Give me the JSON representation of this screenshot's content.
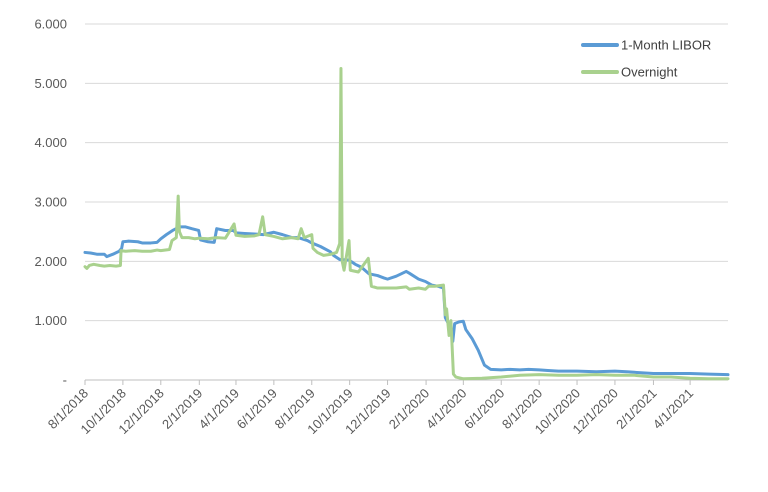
{
  "chart_data": {
    "type": "line",
    "title": "",
    "xlabel": "",
    "ylabel": "",
    "ylim": [
      0,
      6
    ],
    "xlim": [
      "2018-08-01",
      "2021-06-01"
    ],
    "y_ticks": [
      "-",
      "1.000",
      "2.000",
      "3.000",
      "4.000",
      "5.000",
      "6.000"
    ],
    "x_ticks": [
      {
        "label": "8/1/2018",
        "date": "2018-08-01"
      },
      {
        "label": "10/1/2018",
        "date": "2018-10-01"
      },
      {
        "label": "12/1/2018",
        "date": "2018-12-01"
      },
      {
        "label": "2/1/2019",
        "date": "2019-02-01"
      },
      {
        "label": "4/1/2019",
        "date": "2019-04-01"
      },
      {
        "label": "6/1/2019",
        "date": "2019-06-01"
      },
      {
        "label": "8/1/2019",
        "date": "2019-08-01"
      },
      {
        "label": "10/1/2019",
        "date": "2019-10-01"
      },
      {
        "label": "12/1/2019",
        "date": "2019-12-01"
      },
      {
        "label": "2/1/2020",
        "date": "2020-02-01"
      },
      {
        "label": "4/1/2020",
        "date": "2020-04-01"
      },
      {
        "label": "6/1/2020",
        "date": "2020-06-01"
      },
      {
        "label": "8/1/2020",
        "date": "2020-08-01"
      },
      {
        "label": "10/1/2020",
        "date": "2020-10-01"
      },
      {
        "label": "12/1/2020",
        "date": "2020-12-01"
      },
      {
        "label": "2/1/2021",
        "date": "2021-02-01"
      },
      {
        "label": "4/1/2021",
        "date": "2021-04-01"
      }
    ],
    "grid": true,
    "legend_position": "top-right",
    "series": [
      {
        "name": "1-Month LIBOR",
        "color": "#5B9BD5",
        "points": [
          [
            "2018-08-01",
            2.15
          ],
          [
            "2018-08-10",
            2.14
          ],
          [
            "2018-08-20",
            2.12
          ],
          [
            "2018-09-01",
            2.12
          ],
          [
            "2018-09-05",
            2.08
          ],
          [
            "2018-09-15",
            2.12
          ],
          [
            "2018-09-25",
            2.17
          ],
          [
            "2018-09-29",
            2.22
          ],
          [
            "2018-10-01",
            2.33
          ],
          [
            "2018-10-10",
            2.34
          ],
          [
            "2018-10-25",
            2.33
          ],
          [
            "2018-11-01",
            2.31
          ],
          [
            "2018-11-15",
            2.31
          ],
          [
            "2018-11-25",
            2.32
          ],
          [
            "2018-12-01",
            2.38
          ],
          [
            "2018-12-10",
            2.45
          ],
          [
            "2018-12-20",
            2.52
          ],
          [
            "2018-12-31",
            2.58
          ],
          [
            "2019-01-10",
            2.58
          ],
          [
            "2019-01-20",
            2.55
          ],
          [
            "2019-01-31",
            2.52
          ],
          [
            "2019-02-03",
            2.36
          ],
          [
            "2019-02-15",
            2.33
          ],
          [
            "2019-02-25",
            2.32
          ],
          [
            "2019-03-01",
            2.55
          ],
          [
            "2019-03-15",
            2.52
          ],
          [
            "2019-03-28",
            2.52
          ],
          [
            "2019-04-01",
            2.48
          ],
          [
            "2019-04-15",
            2.47
          ],
          [
            "2019-05-01",
            2.46
          ],
          [
            "2019-05-15",
            2.45
          ],
          [
            "2019-06-01",
            2.49
          ],
          [
            "2019-06-15",
            2.45
          ],
          [
            "2019-06-30",
            2.4
          ],
          [
            "2019-07-10",
            2.4
          ],
          [
            "2019-07-25",
            2.35
          ],
          [
            "2019-08-01",
            2.31
          ],
          [
            "2019-08-15",
            2.25
          ],
          [
            "2019-08-31",
            2.16
          ],
          [
            "2019-09-05",
            2.1
          ],
          [
            "2019-09-15",
            2.03
          ],
          [
            "2019-09-30",
            2.02
          ],
          [
            "2019-10-10",
            1.95
          ],
          [
            "2019-10-20",
            1.9
          ],
          [
            "2019-11-01",
            1.79
          ],
          [
            "2019-11-15",
            1.76
          ],
          [
            "2019-11-25",
            1.72
          ],
          [
            "2019-12-01",
            1.7
          ],
          [
            "2019-12-15",
            1.75
          ],
          [
            "2019-12-31",
            1.83
          ],
          [
            "2020-01-05",
            1.8
          ],
          [
            "2020-01-20",
            1.7
          ],
          [
            "2020-01-31",
            1.66
          ],
          [
            "2020-02-10",
            1.6
          ],
          [
            "2020-02-20",
            1.58
          ],
          [
            "2020-02-29",
            1.55
          ],
          [
            "2020-03-03",
            1.05
          ],
          [
            "2020-03-08",
            0.95
          ],
          [
            "2020-03-12",
            0.9
          ],
          [
            "2020-03-15",
            0.65
          ],
          [
            "2020-03-18",
            0.95
          ],
          [
            "2020-03-25",
            0.98
          ],
          [
            "2020-04-01",
            0.99
          ],
          [
            "2020-04-05",
            0.85
          ],
          [
            "2020-04-15",
            0.7
          ],
          [
            "2020-04-25",
            0.5
          ],
          [
            "2020-05-05",
            0.25
          ],
          [
            "2020-05-15",
            0.18
          ],
          [
            "2020-06-01",
            0.17
          ],
          [
            "2020-06-15",
            0.18
          ],
          [
            "2020-07-01",
            0.17
          ],
          [
            "2020-07-15",
            0.18
          ],
          [
            "2020-08-01",
            0.17
          ],
          [
            "2020-08-15",
            0.16
          ],
          [
            "2020-09-01",
            0.15
          ],
          [
            "2020-10-01",
            0.15
          ],
          [
            "2020-11-01",
            0.14
          ],
          [
            "2020-12-01",
            0.15
          ],
          [
            "2020-12-20",
            0.14
          ],
          [
            "2021-01-01",
            0.13
          ],
          [
            "2021-02-01",
            0.11
          ],
          [
            "2021-03-01",
            0.11
          ],
          [
            "2021-04-01",
            0.11
          ],
          [
            "2021-05-01",
            0.1
          ],
          [
            "2021-06-01",
            0.09
          ]
        ]
      },
      {
        "name": "Overnight",
        "color": "#A9D18E",
        "points": [
          [
            "2018-08-01",
            1.91
          ],
          [
            "2018-08-04",
            1.88
          ],
          [
            "2018-08-08",
            1.93
          ],
          [
            "2018-08-15",
            1.95
          ],
          [
            "2018-08-25",
            1.93
          ],
          [
            "2018-09-01",
            1.92
          ],
          [
            "2018-09-10",
            1.93
          ],
          [
            "2018-09-20",
            1.92
          ],
          [
            "2018-09-27",
            1.93
          ],
          [
            "2018-09-28",
            2.18
          ],
          [
            "2018-10-05",
            2.17
          ],
          [
            "2018-10-20",
            2.18
          ],
          [
            "2018-11-01",
            2.17
          ],
          [
            "2018-11-15",
            2.17
          ],
          [
            "2018-11-25",
            2.19
          ],
          [
            "2018-12-01",
            2.18
          ],
          [
            "2018-12-15",
            2.2
          ],
          [
            "2018-12-19",
            2.35
          ],
          [
            "2018-12-26",
            2.4
          ],
          [
            "2018-12-29",
            3.1
          ],
          [
            "2018-12-31",
            2.5
          ],
          [
            "2019-01-04",
            2.4
          ],
          [
            "2019-01-15",
            2.4
          ],
          [
            "2019-01-25",
            2.38
          ],
          [
            "2019-02-01",
            2.39
          ],
          [
            "2019-02-15",
            2.38
          ],
          [
            "2019-03-01",
            2.4
          ],
          [
            "2019-03-15",
            2.39
          ],
          [
            "2019-03-29",
            2.63
          ],
          [
            "2019-04-01",
            2.44
          ],
          [
            "2019-04-15",
            2.42
          ],
          [
            "2019-05-01",
            2.43
          ],
          [
            "2019-05-08",
            2.45
          ],
          [
            "2019-05-14",
            2.75
          ],
          [
            "2019-05-18",
            2.45
          ],
          [
            "2019-06-01",
            2.42
          ],
          [
            "2019-06-15",
            2.38
          ],
          [
            "2019-06-30",
            2.4
          ],
          [
            "2019-07-10",
            2.38
          ],
          [
            "2019-07-15",
            2.55
          ],
          [
            "2019-07-20",
            2.4
          ],
          [
            "2019-08-01",
            2.45
          ],
          [
            "2019-08-03",
            2.22
          ],
          [
            "2019-08-10",
            2.15
          ],
          [
            "2019-08-20",
            2.1
          ],
          [
            "2019-09-01",
            2.12
          ],
          [
            "2019-09-10",
            2.15
          ],
          [
            "2019-09-15",
            2.3
          ],
          [
            "2019-09-17",
            5.25
          ],
          [
            "2019-09-19",
            2.0
          ],
          [
            "2019-09-22",
            1.85
          ],
          [
            "2019-09-30",
            2.35
          ],
          [
            "2019-10-02",
            1.85
          ],
          [
            "2019-10-15",
            1.82
          ],
          [
            "2019-10-31",
            2.05
          ],
          [
            "2019-11-05",
            1.58
          ],
          [
            "2019-11-15",
            1.55
          ],
          [
            "2019-12-01",
            1.55
          ],
          [
            "2019-12-15",
            1.55
          ],
          [
            "2019-12-31",
            1.57
          ],
          [
            "2020-01-05",
            1.53
          ],
          [
            "2020-01-20",
            1.55
          ],
          [
            "2020-01-31",
            1.53
          ],
          [
            "2020-02-05",
            1.58
          ],
          [
            "2020-02-15",
            1.58
          ],
          [
            "2020-02-29",
            1.6
          ],
          [
            "2020-03-03",
            1.1
          ],
          [
            "2020-03-05",
            1.2
          ],
          [
            "2020-03-09",
            0.75
          ],
          [
            "2020-03-12",
            1.0
          ],
          [
            "2020-03-16",
            0.1
          ],
          [
            "2020-03-20",
            0.05
          ],
          [
            "2020-04-01",
            0.02
          ],
          [
            "2020-05-01",
            0.03
          ],
          [
            "2020-06-01",
            0.05
          ],
          [
            "2020-07-01",
            0.08
          ],
          [
            "2020-08-01",
            0.09
          ],
          [
            "2020-09-01",
            0.08
          ],
          [
            "2020-10-01",
            0.08
          ],
          [
            "2020-11-01",
            0.09
          ],
          [
            "2020-12-01",
            0.08
          ],
          [
            "2021-01-01",
            0.08
          ],
          [
            "2021-02-01",
            0.05
          ],
          [
            "2021-03-01",
            0.05
          ],
          [
            "2021-04-01",
            0.03
          ],
          [
            "2021-05-01",
            0.02
          ],
          [
            "2021-06-01",
            0.02
          ]
        ]
      }
    ]
  }
}
